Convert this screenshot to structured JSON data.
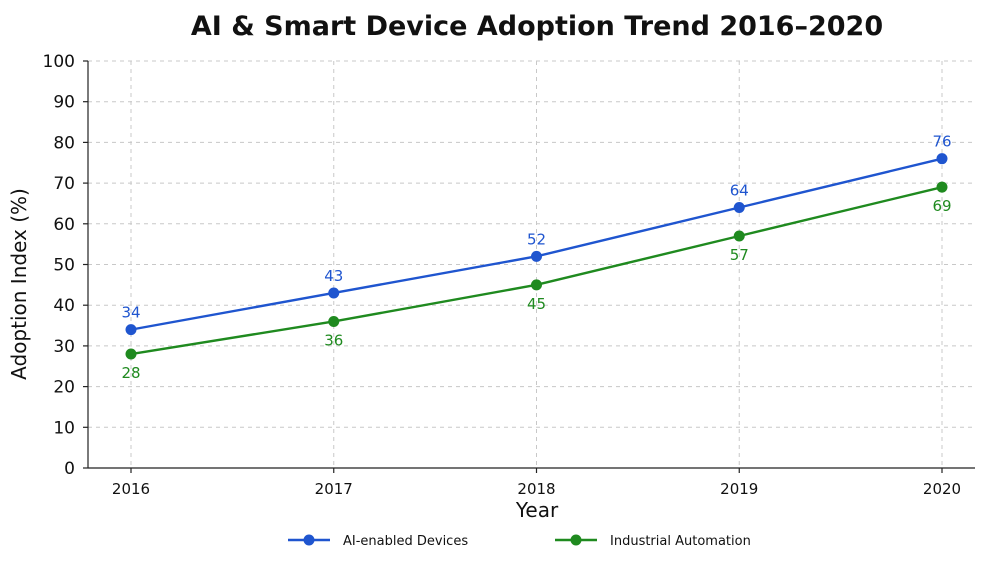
{
  "chart_data": {
    "type": "line",
    "title": "AI & Smart Device Adoption Trend 2016–2020",
    "xlabel": "Year",
    "ylabel": "Adoption Index (%)",
    "categories": [
      "2016",
      "2017",
      "2018",
      "2019",
      "2020"
    ],
    "ylim": [
      0,
      100
    ],
    "yticks": [
      0,
      10,
      20,
      30,
      40,
      50,
      60,
      70,
      80,
      90,
      100
    ],
    "grid": true,
    "legend_position": "bottom-center",
    "series": [
      {
        "name": "AI-enabled Devices",
        "color": "#1f55cf",
        "values": [
          34,
          43,
          52,
          64,
          76
        ],
        "labels": [
          "34",
          "43",
          "52",
          "64",
          "76"
        ],
        "label_position": "above"
      },
      {
        "name": "Industrial Automation",
        "color": "#1f8a1f",
        "values": [
          28,
          36,
          45,
          57,
          69
        ],
        "labels": [
          "28",
          "36",
          "45",
          "57",
          "69"
        ],
        "label_position": "below"
      }
    ]
  }
}
